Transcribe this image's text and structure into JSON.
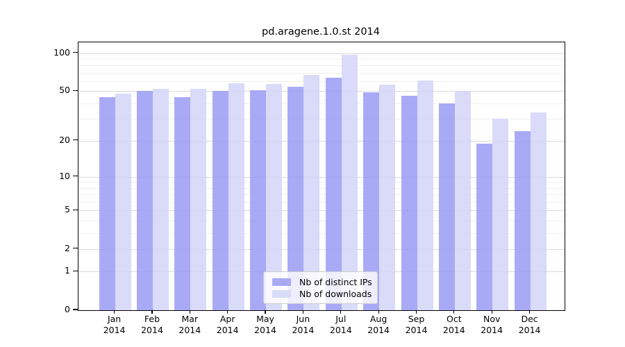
{
  "chart_data": {
    "type": "bar",
    "title": "pd.aragene.1.0.st 2014",
    "categories": [
      "Jan 2014",
      "Feb 2014",
      "Mar 2014",
      "Apr 2014",
      "May 2014",
      "Jun 2014",
      "Jul 2014",
      "Aug 2014",
      "Sep 2014",
      "Oct 2014",
      "Nov 2014",
      "Dec 2014"
    ],
    "series": [
      {
        "name": "Nb of distinct IPs",
        "color": "#a9aaf6",
        "values": [
          45,
          50,
          45,
          50,
          51,
          54,
          64,
          49,
          46,
          40,
          19,
          24
        ]
      },
      {
        "name": "Nb of downloads",
        "color": "#d9dbf8",
        "values": [
          48,
          52,
          52,
          58,
          57,
          67,
          97,
          56,
          61,
          50,
          30,
          34
        ]
      }
    ],
    "xlabel": "",
    "ylabel": "",
    "yscale": "log(1+y)",
    "yticks": [
      0,
      1,
      2,
      5,
      10,
      20,
      50,
      100
    ],
    "y_minor_gridlines": [
      3,
      4,
      6,
      7,
      8,
      9,
      30,
      40,
      60,
      70,
      80,
      90
    ],
    "ylim": [
      0,
      121
    ],
    "grid": "horizontal",
    "legend_position": "lower center"
  },
  "colors": {
    "major_grid": "#d9d9d9",
    "minor_grid": "#efefef",
    "axis": "#000000",
    "background": "#ffffff"
  }
}
